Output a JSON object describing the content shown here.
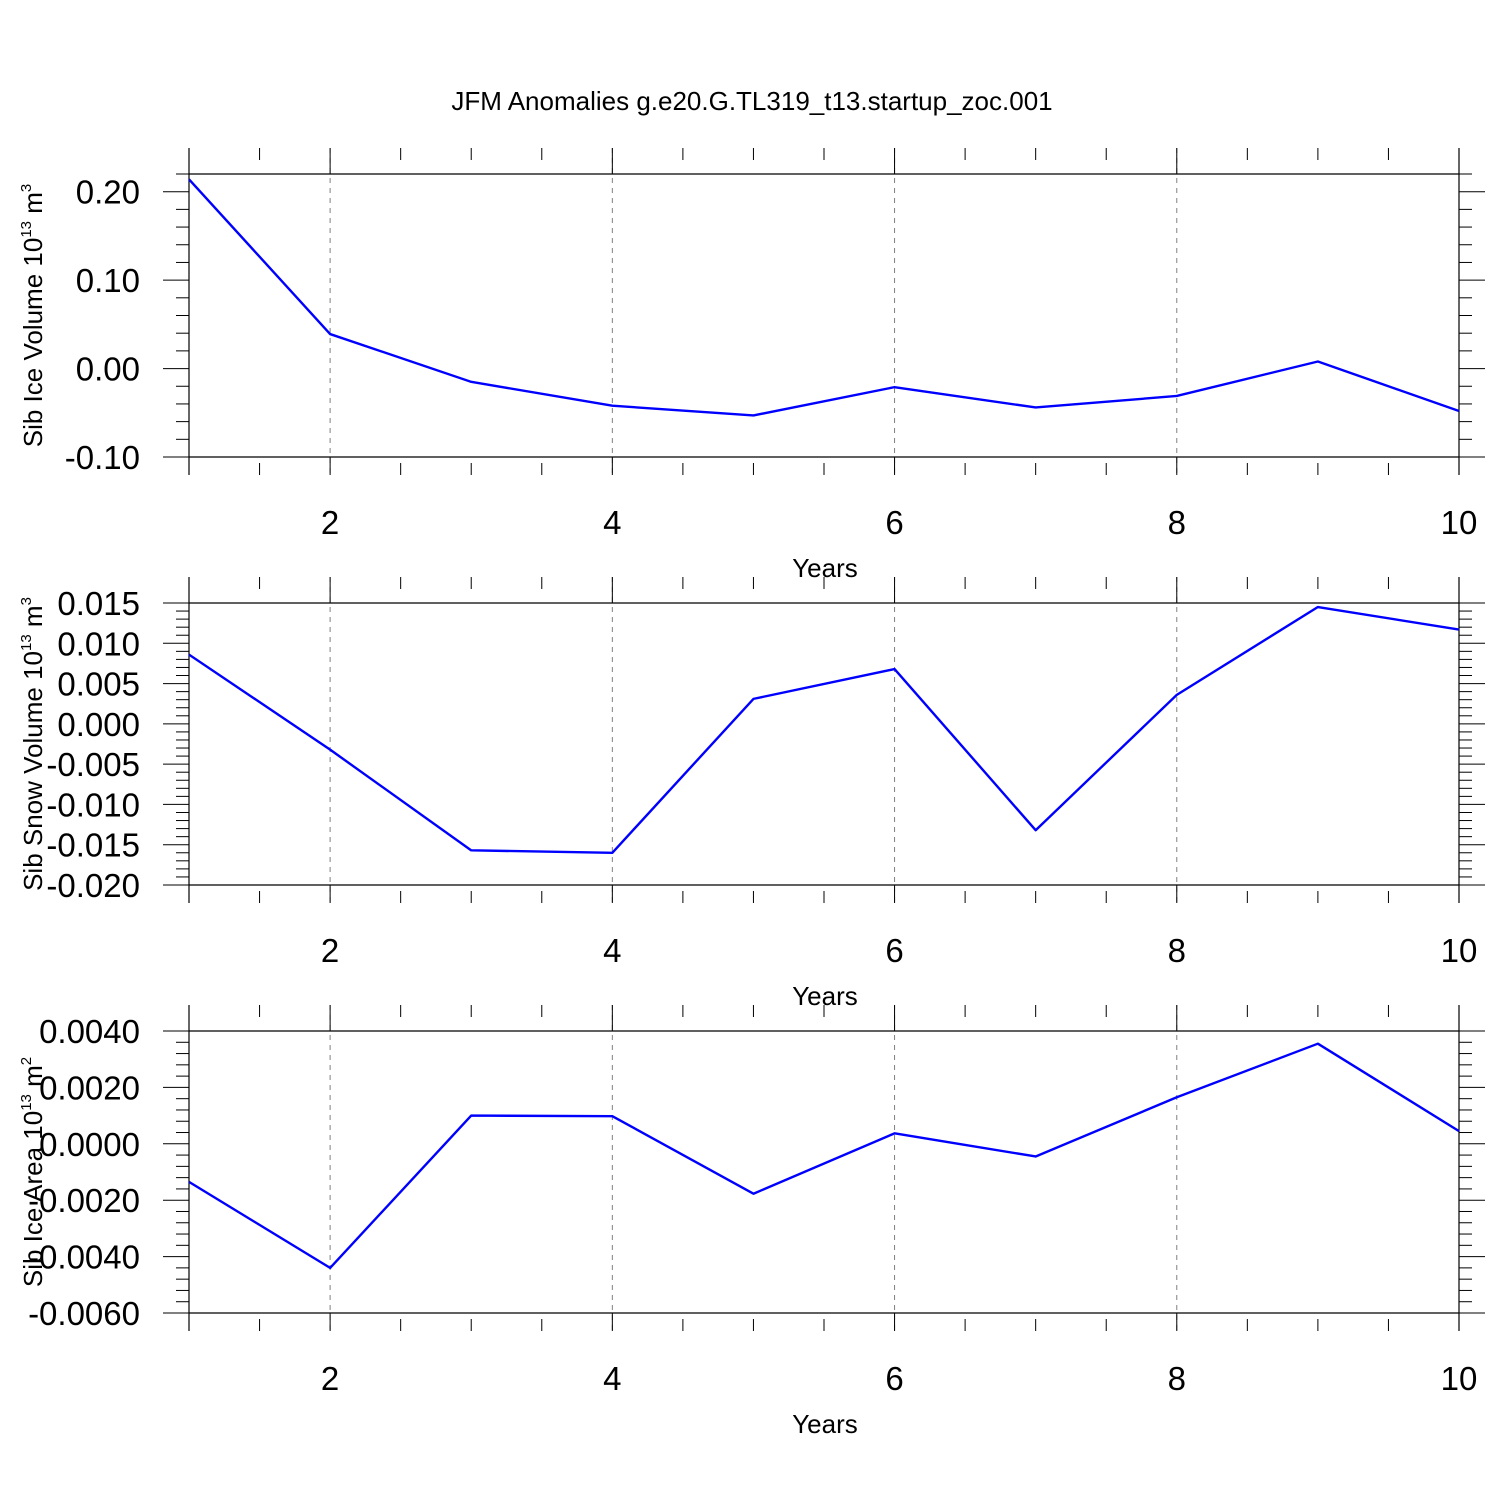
{
  "title": "JFM Anomalies g.e20.G.TL319_t13.startup_zoc.001",
  "colors": {
    "line": "#0000ff",
    "frame": "#000000",
    "grid": "#808080"
  },
  "chart_data": [
    {
      "type": "line",
      "xlabel": "Years",
      "ylabel_main": "Sib Ice Volume 10",
      "ylabel_exp": "13",
      "ylabel_unit": " m",
      "ylabel_unit_exp": "3",
      "xlim": [
        1,
        10
      ],
      "ylim": [
        -0.1,
        0.22
      ],
      "xticks": [
        2,
        4,
        6,
        8,
        10
      ],
      "xtick_labels": [
        "2",
        "4",
        "6",
        "8",
        "10"
      ],
      "yticks": [
        -0.1,
        0.0,
        0.1,
        0.2
      ],
      "ytick_labels": [
        "-0.10",
        "0.00",
        "0.10",
        "0.20"
      ],
      "yminor_step": 0.02,
      "grid": "vertical dashed at major x ticks",
      "series": [
        {
          "x": [
            1,
            2,
            3,
            4,
            5,
            6,
            7,
            8,
            9,
            10
          ],
          "values": [
            0.214,
            0.039,
            -0.015,
            -0.042,
            -0.053,
            -0.021,
            -0.044,
            -0.031,
            0.008,
            -0.048
          ]
        }
      ]
    },
    {
      "type": "line",
      "xlabel": "Years",
      "ylabel_main": "Sib Snow Volume 10",
      "ylabel_exp": "13",
      "ylabel_unit": " m",
      "ylabel_unit_exp": "3",
      "xlim": [
        1,
        10
      ],
      "ylim": [
        -0.02,
        0.015
      ],
      "xticks": [
        2,
        4,
        6,
        8,
        10
      ],
      "xtick_labels": [
        "2",
        "4",
        "6",
        "8",
        "10"
      ],
      "yticks": [
        -0.02,
        -0.015,
        -0.01,
        -0.005,
        0.0,
        0.005,
        0.01,
        0.015
      ],
      "ytick_labels": [
        "-0.020",
        "-0.015",
        "-0.010",
        "-0.005",
        "0.000",
        "0.005",
        "0.010",
        "0.015"
      ],
      "yminor_step": 0.001,
      "grid": "vertical dashed at major x ticks",
      "series": [
        {
          "x": [
            1,
            2,
            3,
            4,
            5,
            6,
            7,
            8,
            9,
            10
          ],
          "values": [
            0.0086,
            -0.0032,
            -0.0157,
            -0.016,
            0.0031,
            0.0068,
            -0.0132,
            0.0036,
            0.0145,
            0.0117
          ]
        }
      ]
    },
    {
      "type": "line",
      "xlabel": "Years",
      "ylabel_main": "Sib Ice Area 10",
      "ylabel_exp": "13",
      "ylabel_unit": " m",
      "ylabel_unit_exp": "2",
      "xlim": [
        1,
        10
      ],
      "ylim": [
        -0.006,
        0.004
      ],
      "xticks": [
        2,
        4,
        6,
        8,
        10
      ],
      "xtick_labels": [
        "2",
        "4",
        "6",
        "8",
        "10"
      ],
      "yticks": [
        -0.006,
        -0.004,
        -0.002,
        0.0,
        0.002,
        0.004
      ],
      "ytick_labels": [
        "-0.0060",
        "-0.0040",
        "-0.0020",
        "0.0000",
        "0.0020",
        "0.0040"
      ],
      "yminor_step": 0.0004,
      "grid": "vertical dashed at major x ticks",
      "series": [
        {
          "x": [
            1,
            2,
            3,
            4,
            5,
            6,
            7,
            8,
            9,
            10
          ],
          "values": [
            -0.00135,
            -0.0044,
            0.001,
            0.00098,
            -0.00177,
            0.00037,
            -0.00045,
            0.00165,
            0.00355,
            0.00045
          ]
        }
      ]
    }
  ]
}
